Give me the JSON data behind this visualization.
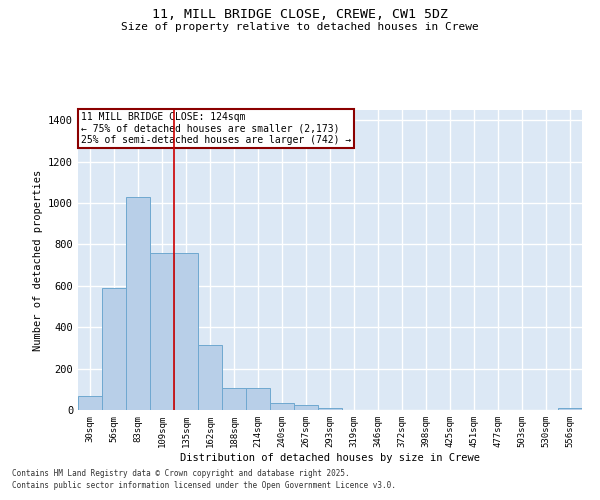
{
  "title_line1": "11, MILL BRIDGE CLOSE, CREWE, CW1 5DZ",
  "title_line2": "Size of property relative to detached houses in Crewe",
  "xlabel": "Distribution of detached houses by size in Crewe",
  "ylabel": "Number of detached properties",
  "categories": [
    "30sqm",
    "56sqm",
    "83sqm",
    "109sqm",
    "135sqm",
    "162sqm",
    "188sqm",
    "214sqm",
    "240sqm",
    "267sqm",
    "293sqm",
    "319sqm",
    "346sqm",
    "372sqm",
    "398sqm",
    "425sqm",
    "451sqm",
    "477sqm",
    "503sqm",
    "530sqm",
    "556sqm"
  ],
  "values": [
    70,
    590,
    1030,
    760,
    760,
    315,
    105,
    105,
    35,
    25,
    10,
    0,
    0,
    0,
    0,
    0,
    0,
    0,
    0,
    0,
    10
  ],
  "bar_color": "#b8cfe8",
  "bar_edge_color": "#6fa8d0",
  "vline_x_idx": 3.5,
  "vline_color": "#cc0000",
  "annotation_text": "11 MILL BRIDGE CLOSE: 124sqm\n← 75% of detached houses are smaller (2,173)\n25% of semi-detached houses are larger (742) →",
  "annotation_box_color": "white",
  "annotation_box_edge_color": "#8b0000",
  "ylim": [
    0,
    1450
  ],
  "yticks": [
    0,
    200,
    400,
    600,
    800,
    1000,
    1200,
    1400
  ],
  "background_color": "#dce8f5",
  "grid_color": "white",
  "footer_line1": "Contains HM Land Registry data © Crown copyright and database right 2025.",
  "footer_line2": "Contains public sector information licensed under the Open Government Licence v3.0."
}
